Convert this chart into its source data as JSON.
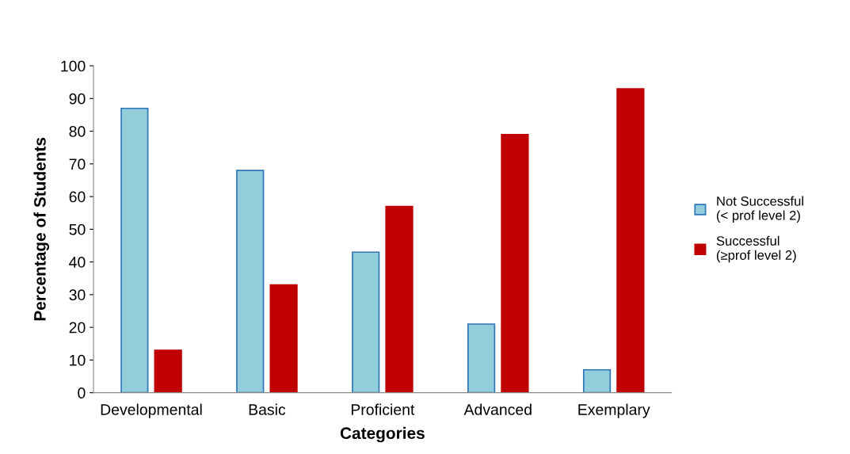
{
  "chart_data": {
    "type": "bar",
    "xlabel": "Categories",
    "ylabel": "Percentage of Students",
    "categories": [
      "Developmental",
      "Basic",
      "Proficient",
      "Advanced",
      "Exemplary"
    ],
    "series": [
      {
        "name": "Not Successful\n(< prof level 2)",
        "color": "#92cddc",
        "values": [
          87,
          68,
          43,
          21,
          7
        ]
      },
      {
        "name": "Successful\n(≥prof level 2)",
        "color": "#c00000",
        "values": [
          13,
          33,
          57,
          79,
          93
        ]
      }
    ],
    "ylim": [
      0,
      100
    ],
    "yticks": [
      0,
      10,
      20,
      30,
      40,
      50,
      60,
      70,
      80,
      90,
      100
    ],
    "grid": false,
    "legend": "right"
  }
}
